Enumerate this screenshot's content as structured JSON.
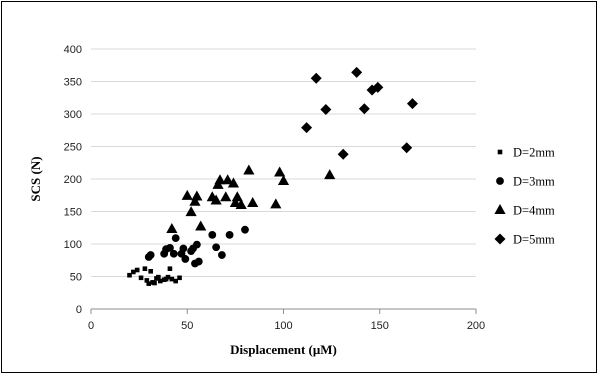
{
  "chart_data": {
    "type": "scatter",
    "xlabel": "Displacement (μM)",
    "ylabel": "SCS (N)",
    "xlim": [
      0,
      200
    ],
    "ylim": [
      0,
      400
    ],
    "x_ticks": [
      0,
      50,
      100,
      150,
      200
    ],
    "y_ticks": [
      0,
      50,
      100,
      150,
      200,
      250,
      300,
      350,
      400
    ],
    "grid": "horizontal",
    "legend_position": "right",
    "colors": {
      "marker": "#000000",
      "grid": "#d9d9d9",
      "axis": "#8c8c8c"
    },
    "series": [
      {
        "name": "D=2mm",
        "marker": "square",
        "points": [
          [
            20,
            52
          ],
          [
            22,
            57
          ],
          [
            24,
            60
          ],
          [
            26,
            48
          ],
          [
            28,
            62
          ],
          [
            29,
            44
          ],
          [
            30,
            39
          ],
          [
            31,
            58
          ],
          [
            32,
            41
          ],
          [
            33,
            40
          ],
          [
            34,
            47
          ],
          [
            35,
            49
          ],
          [
            36,
            43
          ],
          [
            38,
            45
          ],
          [
            39,
            46
          ],
          [
            40,
            49
          ],
          [
            41,
            62
          ],
          [
            42,
            46
          ],
          [
            44,
            43
          ],
          [
            46,
            48
          ]
        ]
      },
      {
        "name": "D=3mm",
        "marker": "circle",
        "points": [
          [
            30,
            80
          ],
          [
            31,
            83
          ],
          [
            38,
            85
          ],
          [
            39,
            92
          ],
          [
            41,
            94
          ],
          [
            43,
            85
          ],
          [
            44,
            109
          ],
          [
            47,
            85
          ],
          [
            48,
            93
          ],
          [
            49,
            77
          ],
          [
            52,
            89
          ],
          [
            53,
            93
          ],
          [
            54,
            70
          ],
          [
            55,
            99
          ],
          [
            56,
            73
          ],
          [
            63,
            114
          ],
          [
            65,
            95
          ],
          [
            68,
            83
          ],
          [
            72,
            114
          ],
          [
            80,
            122
          ]
        ]
      },
      {
        "name": "D=4mm",
        "marker": "triangle",
        "points": [
          [
            42,
            123
          ],
          [
            50,
            174
          ],
          [
            52,
            149
          ],
          [
            54,
            165
          ],
          [
            55,
            173
          ],
          [
            57,
            127
          ],
          [
            63,
            172
          ],
          [
            65,
            167
          ],
          [
            66,
            191
          ],
          [
            67,
            198
          ],
          [
            70,
            172
          ],
          [
            71,
            198
          ],
          [
            74,
            193
          ],
          [
            75,
            163
          ],
          [
            76,
            172
          ],
          [
            78,
            160
          ],
          [
            82,
            213
          ],
          [
            84,
            163
          ],
          [
            96,
            161
          ],
          [
            98,
            210
          ],
          [
            100,
            197
          ],
          [
            124,
            206
          ]
        ]
      },
      {
        "name": "D=5mm",
        "marker": "diamond",
        "points": [
          [
            112,
            279
          ],
          [
            117,
            355
          ],
          [
            122,
            307
          ],
          [
            131,
            238
          ],
          [
            138,
            364
          ],
          [
            142,
            308
          ],
          [
            146,
            337
          ],
          [
            149,
            341
          ],
          [
            164,
            248
          ],
          [
            167,
            316
          ]
        ]
      }
    ]
  }
}
